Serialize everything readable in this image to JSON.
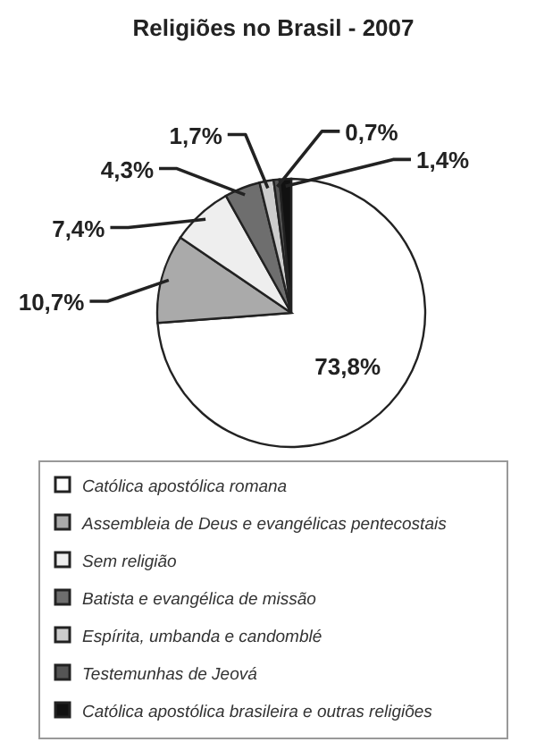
{
  "chart_data": {
    "type": "pie",
    "title": "Religiões no Brasil - 2007",
    "categories": [
      "Católica apostólica romana",
      "Assembleia de Deus e evangélicas pentecostais",
      "Sem religião",
      "Batista e evangélica de missão",
      "Espírita, umbanda e candomblé",
      "Testemunhas de Jeová",
      "Católica apostólica brasileira e outras religiões"
    ],
    "values": [
      73.8,
      10.7,
      7.4,
      4.3,
      1.7,
      0.7,
      1.4
    ],
    "value_labels": [
      "73,8%",
      "10,7%",
      "7,4%",
      "4,3%",
      "1,7%",
      "0,7%",
      "1,4%"
    ],
    "colors": [
      "#ffffff",
      "#aaaaaa",
      "#eeeeee",
      "#6e6e6e",
      "#cccccc",
      "#555555",
      "#111111"
    ],
    "legend": "bottom"
  }
}
